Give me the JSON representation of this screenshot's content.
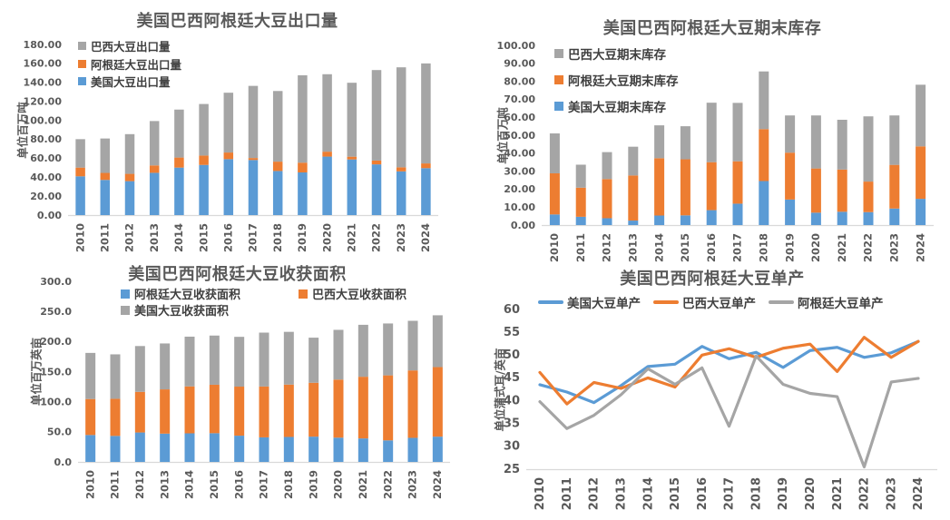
{
  "colors": {
    "blue": "#5B9BD5",
    "orange": "#ED7D31",
    "gray": "#A5A5A5",
    "title_text": "#595959",
    "tick_text": "#595959",
    "legend_text": "#404040",
    "axis_line": "#D9D9D9",
    "background": "#FFFFFF"
  },
  "chart_data": [
    {
      "id": "exports",
      "type": "bar",
      "stacked": true,
      "title": "美国巴西阿根廷大豆出口量",
      "ylabel": "单位百万吨",
      "ylim": [
        0,
        180
      ],
      "ytick_step": 20,
      "ytick_decimals": 2,
      "grid": false,
      "legend_position": "upper-left-vertical",
      "categories": [
        "2010",
        "2011",
        "2012",
        "2013",
        "2014",
        "2015",
        "2016",
        "2017",
        "2018",
        "2019",
        "2020",
        "2021",
        "2022",
        "2023",
        "2024"
      ],
      "legend": [
        {
          "label": "巴西大豆出口量",
          "color": "gray"
        },
        {
          "label": "阿根廷大豆出口量",
          "color": "orange"
        },
        {
          "label": "美国大豆出口量",
          "color": "blue"
        }
      ],
      "series": [
        {
          "name": "美国大豆出口量",
          "color": "blue",
          "values": [
            40.9,
            37.1,
            35.8,
            44.6,
            50.1,
            52.9,
            59.0,
            58.1,
            46.5,
            45.0,
            61.7,
            58.7,
            53.5,
            46.1,
            49.5
          ]
        },
        {
          "name": "阿根廷大豆出口量",
          "color": "orange",
          "values": [
            9.2,
            7.4,
            7.7,
            7.8,
            10.6,
            9.9,
            7.0,
            2.1,
            9.9,
            10.3,
            5.2,
            2.9,
            4.0,
            4.3,
            5.0
          ]
        },
        {
          "name": "巴西大豆出口量",
          "color": "gray",
          "values": [
            30.0,
            36.3,
            41.9,
            46.8,
            50.6,
            54.4,
            63.1,
            76.1,
            74.5,
            92.2,
            81.7,
            78.0,
            95.5,
            105.5,
            105.5
          ]
        }
      ]
    },
    {
      "id": "ending-stocks",
      "type": "bar",
      "stacked": true,
      "title": "美国巴西阿根廷大豆期末库存",
      "ylabel": "单位百万吨",
      "ylim": [
        0,
        100
      ],
      "ytick_step": 10,
      "ytick_decimals": 2,
      "grid": false,
      "legend_position": "upper-left-vertical",
      "categories": [
        "2010",
        "2011",
        "2012",
        "2013",
        "2014",
        "2015",
        "2016",
        "2017",
        "2018",
        "2019",
        "2020",
        "2021",
        "2022",
        "2023",
        "2024"
      ],
      "legend": [
        {
          "label": "巴西大豆期末库存",
          "color": "gray"
        },
        {
          "label": "阿根廷大豆期末库存",
          "color": "orange"
        },
        {
          "label": "美国大豆期末库存",
          "color": "blue"
        }
      ],
      "series": [
        {
          "name": "美国大豆期末库存",
          "color": "blue",
          "values": [
            5.9,
            4.6,
            3.8,
            2.5,
            5.3,
            5.4,
            8.3,
            11.9,
            24.5,
            14.2,
            6.9,
            7.4,
            7.2,
            9.2,
            14.6
          ]
        },
        {
          "name": "阿根廷大豆期末库存",
          "color": "orange",
          "values": [
            22.9,
            16.2,
            21.8,
            25.1,
            31.9,
            31.2,
            26.7,
            23.6,
            28.9,
            26.1,
            24.6,
            23.5,
            17.0,
            24.3,
            29.2
          ]
        },
        {
          "name": "巴西大豆期末库存",
          "color": "gray",
          "values": [
            22.2,
            12.8,
            15.0,
            16.0,
            18.3,
            18.4,
            33.1,
            32.5,
            32.1,
            20.7,
            29.5,
            27.7,
            36.3,
            27.5,
            34.3
          ]
        }
      ]
    },
    {
      "id": "harvested-area",
      "type": "bar",
      "stacked": true,
      "title": "美国巴西阿根廷大豆收获面积",
      "ylabel": "单位百万英亩",
      "ylim": [
        0,
        300
      ],
      "ytick_step": 50,
      "ytick_decimals": 1,
      "grid": false,
      "legend_position": "top-two-column",
      "categories": [
        "2010",
        "2011",
        "2012",
        "2013",
        "2014",
        "2015",
        "2016",
        "2017",
        "2018",
        "2019",
        "2020",
        "2021",
        "2022",
        "2023",
        "2024"
      ],
      "legend": [
        {
          "label": "阿根廷大豆收获面积",
          "color": "blue"
        },
        {
          "label": "巴西大豆收获面积",
          "color": "orange"
        },
        {
          "label": "美国大豆收获面积",
          "color": "gray"
        }
      ],
      "series": [
        {
          "name": "阿根廷大豆收获面积",
          "color": "blue",
          "values": [
            44.7,
            43.2,
            48.9,
            47.0,
            47.5,
            47.7,
            43.6,
            40.8,
            41.5,
            42.0,
            40.3,
            39.0,
            35.8,
            40.0,
            42.0
          ]
        },
        {
          "name": "巴西大豆收获面积",
          "color": "orange",
          "values": [
            59.8,
            61.7,
            67.5,
            73.5,
            78.0,
            80.5,
            81.5,
            84.5,
            87.0,
            89.5,
            96.5,
            102.5,
            108.0,
            112.0,
            115.5
          ]
        },
        {
          "name": "美国大豆收获面积",
          "color": "gray",
          "values": [
            76.6,
            73.8,
            76.1,
            76.3,
            82.6,
            81.7,
            82.7,
            89.5,
            87.6,
            74.9,
            82.6,
            86.3,
            86.2,
            82.4,
            86.1
          ]
        }
      ]
    },
    {
      "id": "yield",
      "type": "line",
      "stacked": false,
      "title": "美国巴西阿根廷大豆单产",
      "ylabel": "单位蒲式耳/英亩",
      "ylim": [
        25,
        60
      ],
      "ytick_step": 5,
      "ytick_decimals": 0,
      "grid": false,
      "legend_position": "top-horizontal",
      "categories": [
        "2010",
        "2011",
        "2012",
        "2013",
        "2014",
        "2015",
        "2016",
        "2017",
        "2018",
        "2019",
        "2020",
        "2021",
        "2022",
        "2023",
        "2024"
      ],
      "legend": [
        {
          "label": "美国大豆单产",
          "color": "blue"
        },
        {
          "label": "巴西大豆单产",
          "color": "orange"
        },
        {
          "label": "阿根廷大豆单产",
          "color": "gray"
        }
      ],
      "series": [
        {
          "name": "美国大豆单产",
          "color": "blue",
          "values": [
            43.5,
            41.9,
            39.6,
            43.3,
            47.5,
            48.0,
            51.9,
            49.2,
            50.6,
            47.3,
            51.0,
            51.7,
            49.5,
            50.5,
            53.0
          ]
        },
        {
          "name": "巴西大豆单产",
          "color": "orange",
          "values": [
            46.2,
            39.3,
            44.0,
            42.7,
            45.0,
            43.0,
            50.0,
            51.4,
            49.5,
            51.5,
            52.4,
            46.4,
            53.9,
            49.5,
            53.0
          ]
        },
        {
          "name": "阿根廷大豆单产",
          "color": "gray",
          "values": [
            39.8,
            33.9,
            36.8,
            41.3,
            47.0,
            43.6,
            47.2,
            34.4,
            49.8,
            43.6,
            41.6,
            40.9,
            25.5,
            44.1,
            44.9
          ]
        }
      ]
    }
  ]
}
